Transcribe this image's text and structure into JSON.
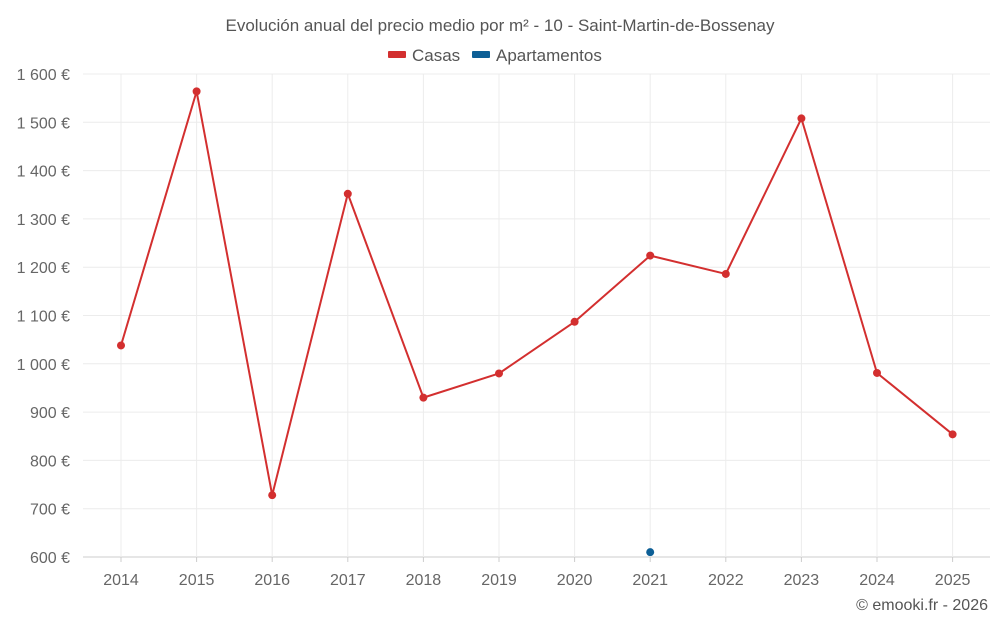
{
  "chart_data": {
    "type": "line",
    "title": "Evolución anual del precio medio por m² - 10 - Saint-Martin-de-Bossenay",
    "categories": [
      "2014",
      "2015",
      "2016",
      "2017",
      "2018",
      "2019",
      "2020",
      "2021",
      "2022",
      "2023",
      "2024",
      "2025"
    ],
    "ylim": [
      600,
      1600
    ],
    "yticks": [
      600,
      700,
      800,
      900,
      1000,
      1100,
      1200,
      1300,
      1400,
      1500,
      1600
    ],
    "ytick_labels": [
      "600 €",
      "700 €",
      "800 €",
      "900 €",
      "1 000 €",
      "1 100 €",
      "1 200 €",
      "1 300 €",
      "1 400 €",
      "1 500 €",
      "1 600 €"
    ],
    "grid": true,
    "legend_position": "top-center",
    "series": [
      {
        "name": "Casas",
        "color": "#d32f2f",
        "values": [
          1038,
          1564,
          728,
          1352,
          930,
          980,
          1087,
          1224,
          1186,
          1508,
          981,
          854
        ]
      },
      {
        "name": "Apartamentos",
        "color": "#0d5f96",
        "values": [
          null,
          null,
          null,
          null,
          null,
          null,
          null,
          610,
          null,
          null,
          null,
          null
        ]
      }
    ],
    "credit": "© emooki.fr - 2026"
  }
}
